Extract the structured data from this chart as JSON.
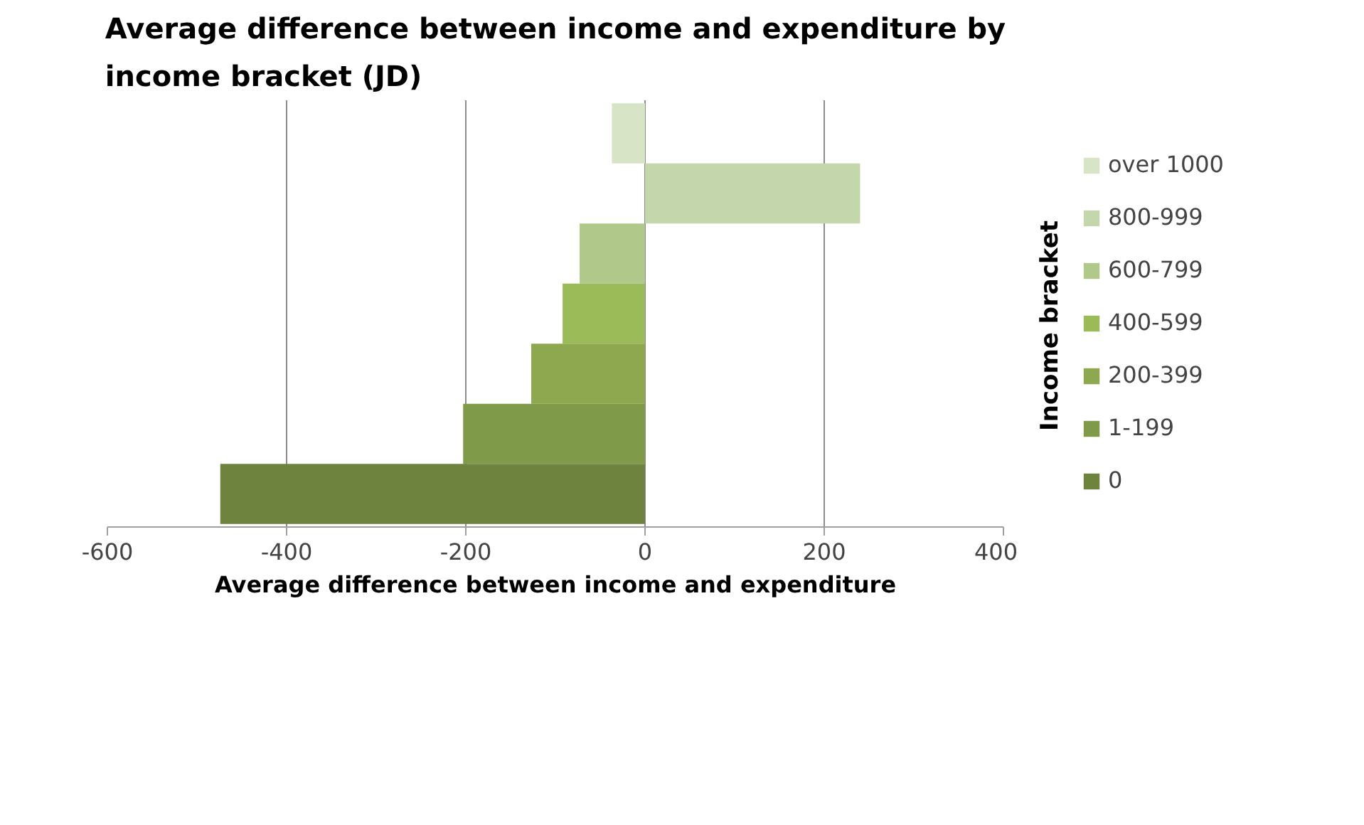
{
  "chart_data": {
    "type": "bar",
    "orientation": "horizontal",
    "title": "Average difference between income and expenditure by income bracket (JD)",
    "xlabel": "Average difference between income and expenditure",
    "legend_title": "Income bracket",
    "categories": [
      null,
      null,
      null,
      null,
      null,
      null,
      null
    ],
    "series": [
      {
        "name": "over 1000",
        "color": "#d7e4c5",
        "values": [
          -37,
          null,
          null,
          null,
          null,
          null,
          null
        ]
      },
      {
        "name": "800-999",
        "color": "#c4d6ab",
        "values": [
          null,
          240,
          null,
          null,
          null,
          null,
          null
        ]
      },
      {
        "name": "600-799",
        "color": "#b0c98b",
        "values": [
          null,
          null,
          -73,
          null,
          null,
          null,
          null
        ]
      },
      {
        "name": "400-599",
        "color": "#9bbb59",
        "values": [
          null,
          null,
          null,
          -92,
          null,
          null,
          null
        ]
      },
      {
        "name": "200-399",
        "color": "#8ea84f",
        "values": [
          null,
          null,
          null,
          null,
          -127,
          null,
          null
        ]
      },
      {
        "name": "1-199",
        "color": "#7f9a48",
        "values": [
          null,
          null,
          null,
          null,
          null,
          -203,
          null
        ]
      },
      {
        "name": "0",
        "color": "#6d833e",
        "values": [
          null,
          null,
          null,
          null,
          null,
          null,
          -474
        ]
      }
    ],
    "xlim": [
      -600,
      400
    ],
    "xticks": [
      -600,
      -400,
      -200,
      0,
      200,
      400
    ],
    "grid": "x",
    "legend": "right",
    "tick_labels": "x"
  }
}
